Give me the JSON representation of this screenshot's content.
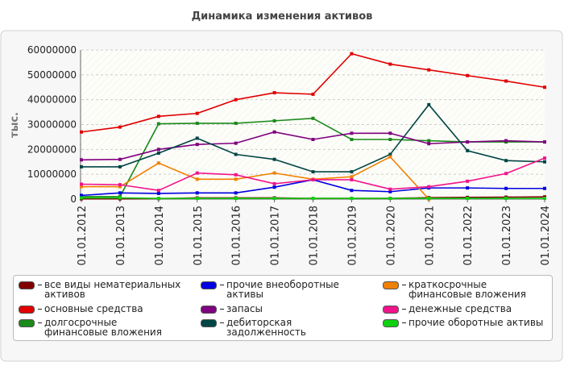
{
  "chart_data": {
    "type": "line",
    "title": "Динамика изменения активов",
    "ylabel": "тыс.",
    "categories": [
      "01.01.2012",
      "01.01.2013",
      "01.01.2014",
      "01.01.2015",
      "01.01.2016",
      "01.01.2017",
      "01.01.2018",
      "01.01.2019",
      "01.01.2020",
      "01.01.2021",
      "01.01.2022",
      "01.01.2023",
      "01.01.2024"
    ],
    "ylim": [
      0,
      60000000
    ],
    "yticks": [
      0,
      10000000,
      20000000,
      30000000,
      40000000,
      50000000,
      60000000
    ],
    "grid": true,
    "legend": "bottom",
    "series": [
      {
        "name": "все виды нематериальных активов",
        "color": "#800000",
        "values": [
          100000,
          100000,
          200000,
          500000,
          500000,
          500000,
          300000,
          300000,
          300000,
          600000,
          700000,
          800000,
          900000
        ]
      },
      {
        "name": "основные средства",
        "color": "#e00000",
        "values": [
          27000000,
          29000000,
          33300000,
          34500000,
          40000000,
          42800000,
          42200000,
          58500000,
          54300000,
          52000000,
          49700000,
          47500000,
          45000000
        ]
      },
      {
        "name": "долгосрочные финансовые вложения",
        "color": "#1a8a1a",
        "values": [
          1000000,
          1000000,
          30300000,
          30500000,
          30500000,
          31500000,
          32500000,
          24000000,
          24000000,
          23500000,
          23000000,
          23000000,
          23000000
        ]
      },
      {
        "name": "прочие внеоборотные активы",
        "color": "#0000e0",
        "values": [
          1500000,
          2500000,
          2300000,
          2500000,
          2500000,
          4800000,
          7800000,
          3500000,
          3000000,
          4500000,
          4500000,
          4300000,
          4300000
        ]
      },
      {
        "name": "запасы",
        "color": "#800080",
        "values": [
          15800000,
          16000000,
          20000000,
          22000000,
          22500000,
          27000000,
          24000000,
          26500000,
          26500000,
          22300000,
          23000000,
          23500000,
          23000000
        ]
      },
      {
        "name": "дебиторская задолженность",
        "color": "#004545",
        "values": [
          13000000,
          13000000,
          18500000,
          24500000,
          18000000,
          16000000,
          11000000,
          11000000,
          18000000,
          38000000,
          19500000,
          15500000,
          15000000
        ]
      },
      {
        "name": "краткосрочные финансовые вложения",
        "color": "#f08000",
        "values": [
          5000000,
          5000000,
          14500000,
          8000000,
          8000000,
          10500000,
          8000000,
          9000000,
          17000000,
          0,
          null,
          null,
          null
        ]
      },
      {
        "name": "денежные средства",
        "color": "#f0148c",
        "values": [
          6000000,
          5800000,
          3500000,
          10500000,
          9800000,
          6200000,
          7800000,
          7800000,
          4000000,
          5000000,
          7200000,
          10300000,
          16500000
        ]
      },
      {
        "name": "прочие оборотные активы",
        "color": "#10d010",
        "values": [
          500000,
          500000,
          300000,
          300000,
          300000,
          300000,
          300000,
          300000,
          300000,
          300000,
          300000,
          300000,
          300000
        ]
      }
    ]
  }
}
